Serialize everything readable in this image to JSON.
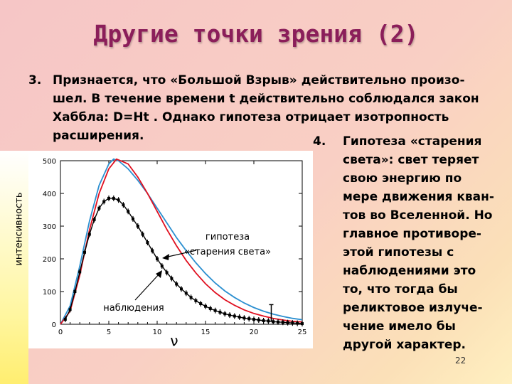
{
  "slide": {
    "title": "Другие точки зрения (2)",
    "page_number": "22"
  },
  "point3": {
    "number": "3.",
    "lines": [
      "Признается, что «Большой Взрыв» действительно произо-",
      "шел. В течение времени t действительно соблюдался закон",
      "Хаббла: D=Ht . Однако гипотеза отрицает изотропность",
      "расширения."
    ]
  },
  "point4": {
    "number": "4.",
    "lines": [
      "Гипотеза «старения",
      "света»: свет теряет",
      "свою энергию по",
      "мере движения кван-",
      "тов во Вселенной. Но",
      "главное противоре-",
      "этой гипотезы с",
      "наблюдениями это",
      "то, что тогда бы",
      "реликтовое излуче-",
      "чение  имело бы",
      "другой  характер."
    ]
  },
  "chart_data": {
    "type": "line",
    "ylabel": "интенсивность",
    "xlabel": "ν",
    "xlim": [
      0,
      25
    ],
    "ylim": [
      0,
      500
    ],
    "x_ticks": [
      "0",
      "5",
      "10",
      "15",
      "20",
      "25"
    ],
    "y_ticks": [
      "0",
      "100",
      "200",
      "300",
      "400",
      "500"
    ],
    "annotations": [
      {
        "text_lines": [
          "гипотеза",
          "«старения света»"
        ],
        "points_to": "hypothesis curve"
      },
      {
        "text_lines": [
          "наблюдения"
        ],
        "points_to": "observation data"
      }
    ],
    "colors": {
      "hypothesis": "#2b8fd0",
      "theory": "#e01020",
      "observation": "#000000"
    },
    "series": [
      {
        "id": "hypothesis",
        "peak_x": 5.5,
        "peak_y": 505,
        "x": [
          0,
          1,
          2,
          3,
          4,
          5,
          5.5,
          6,
          7,
          8,
          9,
          10,
          11,
          12,
          13,
          14,
          15,
          16,
          17,
          18,
          19,
          20,
          21,
          22,
          23,
          24,
          25
        ],
        "y": [
          0,
          56,
          178,
          315,
          425,
          490,
          505,
          500,
          475,
          440,
          400,
          355,
          310,
          265,
          225,
          188,
          155,
          126,
          102,
          82,
          65,
          51,
          40,
          31,
          24,
          18,
          14
        ]
      },
      {
        "id": "theory",
        "peak_x": 5.8,
        "peak_y": 505,
        "x": [
          0,
          1,
          2,
          3,
          4,
          5,
          5.8,
          7,
          8,
          9,
          10,
          11,
          12,
          13,
          14,
          15,
          16,
          17,
          18,
          19,
          20,
          21,
          22,
          23,
          24,
          25
        ],
        "y": [
          0,
          40,
          150,
          288,
          400,
          475,
          505,
          490,
          450,
          400,
          345,
          290,
          240,
          195,
          157,
          124,
          97,
          75,
          58,
          44,
          33,
          25,
          18,
          13,
          9,
          7
        ]
      },
      {
        "id": "observation",
        "x": [
          0.5,
          1,
          1.5,
          2,
          2.5,
          3,
          3.5,
          4,
          4.5,
          5,
          5.5,
          6,
          6.5,
          7,
          7.5,
          8,
          8.5,
          9,
          9.5,
          10,
          10.5,
          11,
          11.5,
          12,
          12.5,
          13,
          13.5,
          14,
          14.5,
          15,
          15.5,
          16,
          16.5,
          17,
          17.5,
          18,
          18.5,
          19,
          19.5,
          20,
          20.5,
          21,
          21.5,
          22,
          22.5,
          23,
          23.5,
          24,
          24.5,
          25
        ],
        "y": [
          15,
          45,
          100,
          160,
          220,
          275,
          320,
          355,
          375,
          385,
          385,
          380,
          365,
          345,
          322,
          300,
          275,
          250,
          225,
          200,
          178,
          158,
          140,
          123,
          108,
          95,
          82,
          72,
          63,
          55,
          48,
          42,
          37,
          32,
          28,
          25,
          22,
          19,
          17,
          15,
          13,
          11,
          10,
          8,
          7,
          6,
          5,
          4,
          3,
          2
        ]
      }
    ]
  }
}
